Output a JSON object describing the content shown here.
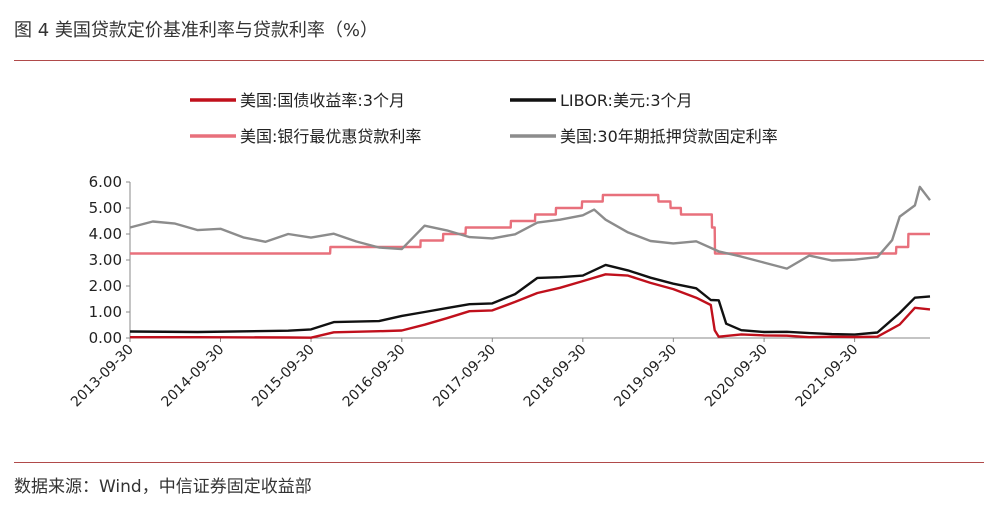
{
  "title": "图 4  美国贷款定价基准利率与贷款利率（%）",
  "source": "数据来源：Wind，中信证券固定收益部",
  "chart_data": {
    "type": "line",
    "ylim": [
      0,
      6
    ],
    "yticks": [
      "0.00",
      "1.00",
      "2.00",
      "3.00",
      "4.00",
      "5.00",
      "6.00"
    ],
    "xlim": [
      "2013-09-30",
      "2022-07-31"
    ],
    "xticks": [
      "2013-09-30",
      "2014-09-30",
      "2015-09-30",
      "2016-09-30",
      "2017-09-30",
      "2018-09-30",
      "2019-09-30",
      "2020-09-30",
      "2021-09-30"
    ],
    "grid": false,
    "legend": "top",
    "series": [
      {
        "name": "美国:国债收益率:3个月",
        "color": "#c0101c",
        "points": [
          [
            "2013-09-30",
            0.03
          ],
          [
            "2014-06-30",
            0.03
          ],
          [
            "2015-06-30",
            0.02
          ],
          [
            "2015-09-30",
            0.01
          ],
          [
            "2015-12-31",
            0.22
          ],
          [
            "2016-06-30",
            0.26
          ],
          [
            "2016-09-30",
            0.29
          ],
          [
            "2016-12-31",
            0.51
          ],
          [
            "2017-03-31",
            0.76
          ],
          [
            "2017-06-30",
            1.03
          ],
          [
            "2017-09-30",
            1.06
          ],
          [
            "2017-12-31",
            1.39
          ],
          [
            "2018-03-31",
            1.73
          ],
          [
            "2018-06-30",
            1.93
          ],
          [
            "2018-09-30",
            2.19
          ],
          [
            "2018-12-31",
            2.45
          ],
          [
            "2019-03-31",
            2.4
          ],
          [
            "2019-06-30",
            2.12
          ],
          [
            "2019-09-30",
            1.88
          ],
          [
            "2019-12-31",
            1.55
          ],
          [
            "2020-02-28",
            1.27
          ],
          [
            "2020-03-15",
            0.3
          ],
          [
            "2020-03-31",
            0.05
          ],
          [
            "2020-06-30",
            0.14
          ],
          [
            "2020-09-30",
            0.1
          ],
          [
            "2020-12-31",
            0.09
          ],
          [
            "2021-03-31",
            0.03
          ],
          [
            "2021-06-30",
            0.05
          ],
          [
            "2021-09-30",
            0.04
          ],
          [
            "2021-12-31",
            0.05
          ],
          [
            "2022-03-31",
            0.52
          ],
          [
            "2022-05-31",
            1.16
          ],
          [
            "2022-07-31",
            1.1
          ]
        ]
      },
      {
        "name": "LIBOR:美元:3个月",
        "color": "#111111",
        "points": [
          [
            "2013-09-30",
            0.25
          ],
          [
            "2014-06-30",
            0.23
          ],
          [
            "2015-06-30",
            0.28
          ],
          [
            "2015-09-30",
            0.33
          ],
          [
            "2015-12-31",
            0.61
          ],
          [
            "2016-06-30",
            0.65
          ],
          [
            "2016-09-30",
            0.85
          ],
          [
            "2016-12-31",
            1.0
          ],
          [
            "2017-03-31",
            1.15
          ],
          [
            "2017-06-30",
            1.3
          ],
          [
            "2017-09-30",
            1.33
          ],
          [
            "2017-12-31",
            1.69
          ],
          [
            "2018-03-31",
            2.31
          ],
          [
            "2018-06-30",
            2.34
          ],
          [
            "2018-09-30",
            2.4
          ],
          [
            "2018-12-31",
            2.81
          ],
          [
            "2019-03-31",
            2.6
          ],
          [
            "2019-06-30",
            2.32
          ],
          [
            "2019-09-30",
            2.09
          ],
          [
            "2019-12-31",
            1.91
          ],
          [
            "2020-02-28",
            1.46
          ],
          [
            "2020-03-31",
            1.45
          ],
          [
            "2020-04-30",
            0.55
          ],
          [
            "2020-06-30",
            0.3
          ],
          [
            "2020-09-30",
            0.23
          ],
          [
            "2020-12-31",
            0.24
          ],
          [
            "2021-03-31",
            0.19
          ],
          [
            "2021-06-30",
            0.15
          ],
          [
            "2021-09-30",
            0.13
          ],
          [
            "2021-12-31",
            0.21
          ],
          [
            "2022-03-31",
            0.96
          ],
          [
            "2022-05-31",
            1.55
          ],
          [
            "2022-07-31",
            1.6
          ]
        ]
      },
      {
        "name": "美国:银行最优惠贷款利率",
        "color": "#e8707c",
        "points": [
          [
            "2013-09-30",
            3.25
          ],
          [
            "2015-12-16",
            3.25
          ],
          [
            "2015-12-17",
            3.5
          ],
          [
            "2016-12-14",
            3.5
          ],
          [
            "2016-12-15",
            3.75
          ],
          [
            "2017-03-15",
            3.75
          ],
          [
            "2017-03-16",
            4.0
          ],
          [
            "2017-06-14",
            4.0
          ],
          [
            "2017-06-15",
            4.25
          ],
          [
            "2017-12-13",
            4.25
          ],
          [
            "2017-12-14",
            4.5
          ],
          [
            "2018-03-21",
            4.5
          ],
          [
            "2018-03-22",
            4.75
          ],
          [
            "2018-06-13",
            4.75
          ],
          [
            "2018-06-14",
            5.0
          ],
          [
            "2018-09-26",
            5.0
          ],
          [
            "2018-09-27",
            5.25
          ],
          [
            "2018-12-19",
            5.25
          ],
          [
            "2018-12-20",
            5.5
          ],
          [
            "2019-07-31",
            5.5
          ],
          [
            "2019-08-01",
            5.25
          ],
          [
            "2019-09-18",
            5.25
          ],
          [
            "2019-09-19",
            5.0
          ],
          [
            "2019-10-30",
            5.0
          ],
          [
            "2019-10-31",
            4.75
          ],
          [
            "2020-03-03",
            4.75
          ],
          [
            "2020-03-04",
            4.25
          ],
          [
            "2020-03-15",
            4.25
          ],
          [
            "2020-03-16",
            3.25
          ],
          [
            "2022-03-16",
            3.25
          ],
          [
            "2022-03-17",
            3.5
          ],
          [
            "2022-05-04",
            3.5
          ],
          [
            "2022-05-05",
            4.0
          ],
          [
            "2022-07-31",
            4.0
          ]
        ]
      },
      {
        "name": "美国:30年期抵押贷款固定利率",
        "color": "#8c8c8c",
        "points": [
          [
            "2013-09-30",
            4.25
          ],
          [
            "2013-12-31",
            4.48
          ],
          [
            "2014-03-31",
            4.4
          ],
          [
            "2014-06-30",
            4.15
          ],
          [
            "2014-09-30",
            4.2
          ],
          [
            "2014-12-31",
            3.87
          ],
          [
            "2015-03-31",
            3.7
          ],
          [
            "2015-06-30",
            4.0
          ],
          [
            "2015-09-30",
            3.86
          ],
          [
            "2015-12-31",
            4.01
          ],
          [
            "2016-03-31",
            3.71
          ],
          [
            "2016-06-30",
            3.48
          ],
          [
            "2016-09-30",
            3.42
          ],
          [
            "2016-12-31",
            4.32
          ],
          [
            "2017-03-31",
            4.14
          ],
          [
            "2017-06-30",
            3.88
          ],
          [
            "2017-09-30",
            3.83
          ],
          [
            "2017-12-31",
            3.99
          ],
          [
            "2018-03-31",
            4.44
          ],
          [
            "2018-06-30",
            4.55
          ],
          [
            "2018-09-30",
            4.72
          ],
          [
            "2018-11-15",
            4.94
          ],
          [
            "2018-12-31",
            4.55
          ],
          [
            "2019-03-31",
            4.06
          ],
          [
            "2019-06-30",
            3.73
          ],
          [
            "2019-09-30",
            3.64
          ],
          [
            "2019-12-31",
            3.72
          ],
          [
            "2020-03-31",
            3.33
          ],
          [
            "2020-06-30",
            3.13
          ],
          [
            "2020-09-30",
            2.9
          ],
          [
            "2020-12-31",
            2.67
          ],
          [
            "2021-03-31",
            3.17
          ],
          [
            "2021-06-30",
            2.98
          ],
          [
            "2021-09-30",
            3.01
          ],
          [
            "2021-12-31",
            3.11
          ],
          [
            "2022-02-28",
            3.76
          ],
          [
            "2022-03-31",
            4.67
          ],
          [
            "2022-05-31",
            5.1
          ],
          [
            "2022-06-20",
            5.81
          ],
          [
            "2022-07-31",
            5.3
          ]
        ]
      }
    ]
  }
}
